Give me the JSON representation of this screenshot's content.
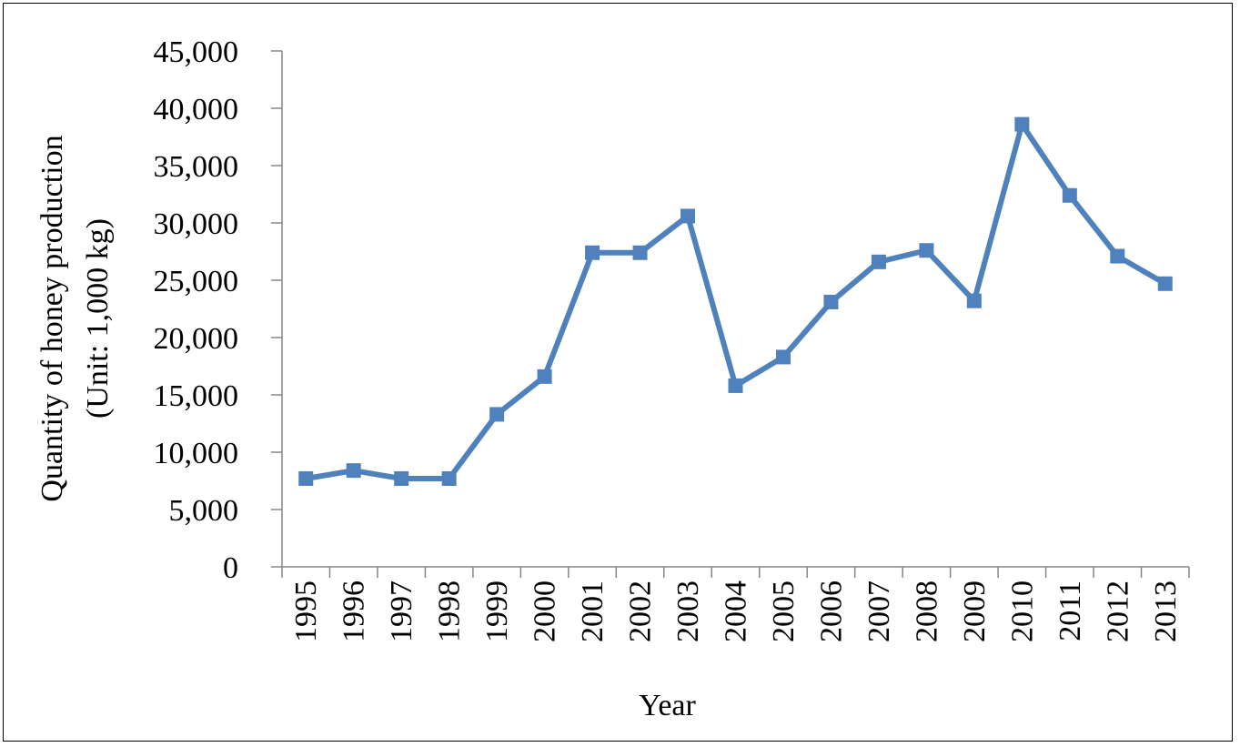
{
  "chart_data": {
    "type": "line",
    "title": "",
    "xlabel": "Year",
    "ylabel_lines": [
      "Quantity of honey production",
      "(Unit: 1,000 kg)"
    ],
    "categories": [
      "1995",
      "1996",
      "1997",
      "1998",
      "1999",
      "2000",
      "2001",
      "2002",
      "2003",
      "2004",
      "2005",
      "2006",
      "2007",
      "2008",
      "2009",
      "2010",
      "2011",
      "2012",
      "2013"
    ],
    "series": [
      {
        "values": [
          7700,
          8400,
          7700,
          7700,
          13300,
          16600,
          27400,
          27400,
          30600,
          15800,
          18300,
          23100,
          26600,
          27600,
          23200,
          38600,
          32400,
          27100,
          24700
        ],
        "color": "#4f81bd",
        "marker": "square"
      }
    ],
    "ylim": [
      0,
      45000
    ],
    "yticks": [
      0,
      5000,
      10000,
      15000,
      20000,
      25000,
      30000,
      35000,
      40000,
      45000
    ],
    "ytick_labels": [
      "0",
      "5,000",
      "10,000",
      "15,000",
      "20,000",
      "25,000",
      "30,000",
      "35,000",
      "40,000",
      "45,000"
    ],
    "grid": false,
    "legend": "none"
  }
}
